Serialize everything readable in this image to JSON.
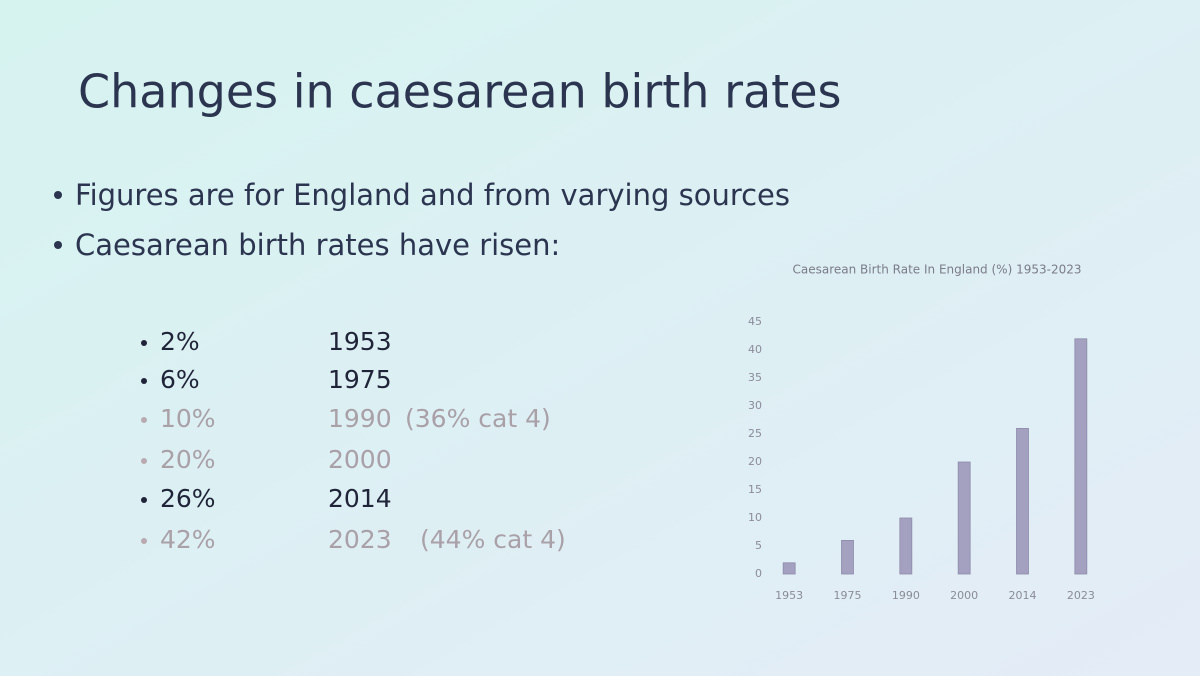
{
  "title": "Changes in caesarean birth rates",
  "bullets": [
    "Figures are for England and from varying sources",
    "Caesarean birth rates have risen:"
  ],
  "rates": [
    {
      "rate": "2%",
      "year": "1953"
    },
    {
      "rate": "6%",
      "year": "1975"
    },
    {
      "rate": "10%",
      "year": "1990",
      "note": "(36% cat 4)"
    },
    {
      "rate": "20%",
      "year": "2000"
    },
    {
      "rate": "26%",
      "year": "2014"
    },
    {
      "rate": "42%",
      "year": "2023",
      "note": "(44% cat 4)"
    }
  ],
  "chart_data": {
    "type": "bar",
    "title": "Caesarean Birth Rate In England (%) 1953-2023",
    "categories": [
      "1953",
      "1975",
      "1990",
      "2000",
      "2014",
      "2023"
    ],
    "values": [
      2,
      6,
      10,
      20,
      26,
      42
    ],
    "color": "#a3a1bf",
    "ylim": [
      0,
      45
    ],
    "yticks": [
      0,
      5,
      10,
      15,
      20,
      25,
      30,
      35,
      40,
      45
    ],
    "grid": false
  }
}
